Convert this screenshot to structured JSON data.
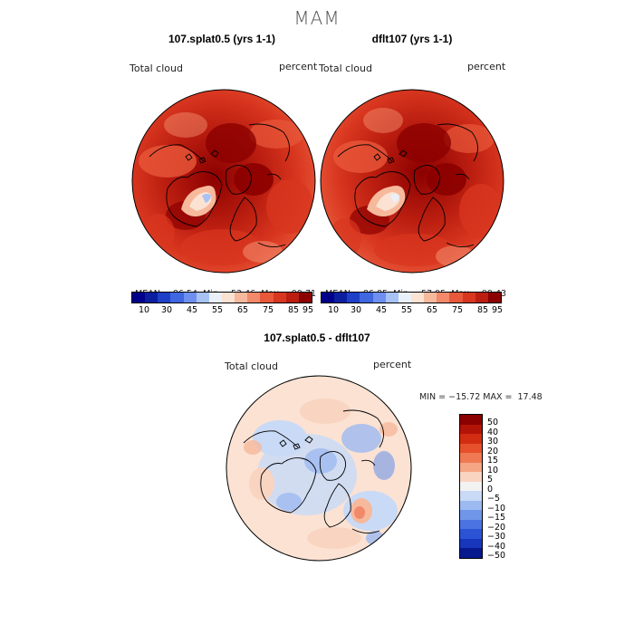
{
  "page_title": "MAM",
  "colors": {
    "warm_scale": [
      "#00008b",
      "#0b1ea0",
      "#1e40c8",
      "#3f67e0",
      "#6e8ff0",
      "#a8c2f5",
      "#e9f0fa",
      "#fbe2d3",
      "#f6b99c",
      "#f1896a",
      "#e8583a",
      "#d8361f",
      "#bb1e10",
      "#8b0000"
    ],
    "diff_scale": [
      "#8b0000",
      "#b31407",
      "#d22d12",
      "#e6502a",
      "#ee7953",
      "#f4a685",
      "#f9d4c1",
      "#f2f2f2",
      "#c9daf6",
      "#9dbaf1",
      "#7096ea",
      "#4b73e1",
      "#2b53d4",
      "#1736bb",
      "#08188f"
    ]
  },
  "panels": [
    {
      "title": "107.splat0.5 (yrs 1-1)",
      "variable": "Total cloud",
      "units": "percent",
      "mean_label": "MEAN=",
      "mean": "86.54",
      "min_label": "Min=",
      "min": "53.46",
      "max_label": "Max=",
      "max": "99.71",
      "ticks": [
        "10",
        "30",
        "45",
        "55",
        "65",
        "75",
        "85",
        "95"
      ]
    },
    {
      "title": "dflt107 (yrs 1-1)",
      "variable": "Total cloud",
      "units": "percent",
      "mean_label": "MEAN=",
      "mean": "86.85",
      "min_label": "Min=",
      "min": "57.95",
      "max_label": "Max=",
      "max": "99.43",
      "ticks": [
        "10",
        "30",
        "45",
        "55",
        "65",
        "75",
        "85",
        "95"
      ]
    }
  ],
  "diff_panel": {
    "title": "107.splat0.5 - dflt107",
    "variable": "Total cloud",
    "units": "percent",
    "minmax_text": "MIN = −15.72 MAX =  17.48",
    "ticks": [
      "50",
      "40",
      "30",
      "20",
      "15",
      "10",
      "5",
      "0",
      "−5",
      "−10",
      "−15",
      "−20",
      "−30",
      "−40",
      "−50"
    ]
  }
}
